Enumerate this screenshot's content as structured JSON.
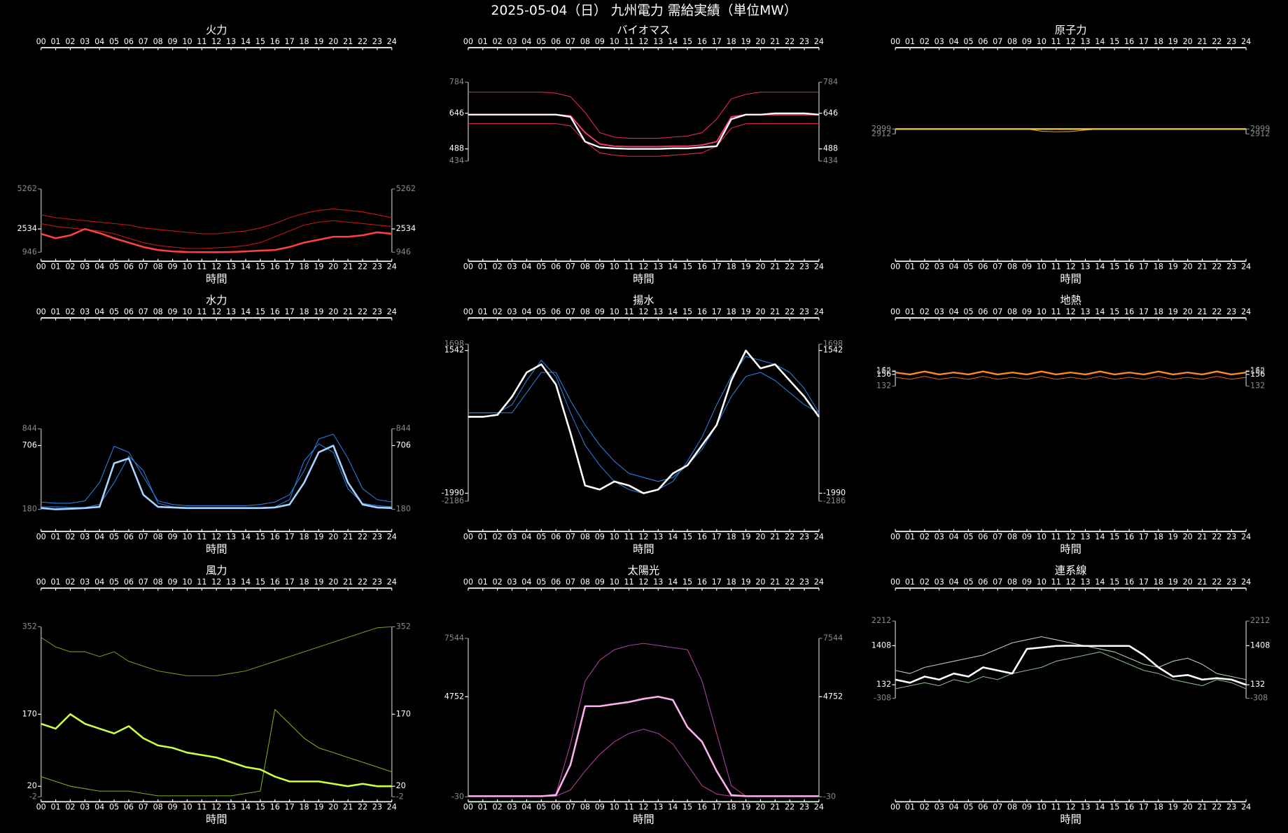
{
  "title": "2025-05-04（日） 九州電力 需給実績（単位MW）",
  "chart_data": [
    {
      "type": "line",
      "title": "火力",
      "xlabel": "時間",
      "categories": [
        "00",
        "01",
        "02",
        "03",
        "04",
        "05",
        "06",
        "07",
        "08",
        "09",
        "10",
        "11",
        "12",
        "13",
        "14",
        "15",
        "16",
        "17",
        "18",
        "19",
        "20",
        "21",
        "22",
        "23",
        "24"
      ],
      "ylim": [
        946,
        5262
      ],
      "yticks": [
        946,
        2534,
        5262
      ],
      "series": [
        {
          "color": "#c81818",
          "width": 0.9,
          "values": [
            3500,
            3300,
            3200,
            3100,
            3000,
            2900,
            2800,
            2600,
            2500,
            2400,
            2300,
            2200,
            2200,
            2300,
            2400,
            2600,
            2900,
            3300,
            3600,
            3800,
            3900,
            3800,
            3700,
            3500,
            3300
          ]
        },
        {
          "color": "#c81818",
          "width": 0.9,
          "values": [
            2900,
            2700,
            2600,
            2500,
            2400,
            2200,
            1900,
            1600,
            1400,
            1300,
            1200,
            1200,
            1250,
            1300,
            1400,
            1600,
            2000,
            2400,
            2800,
            3000,
            3100,
            3000,
            2900,
            2800,
            2700
          ]
        },
        {
          "color": "#ff4040",
          "width": 2.2,
          "values": [
            2200,
            1900,
            2100,
            2534,
            2250,
            1900,
            1600,
            1300,
            1100,
            1000,
            960,
            950,
            946,
            960,
            1000,
            1050,
            1100,
            1300,
            1600,
            1800,
            2000,
            2000,
            2100,
            2300,
            2200
          ]
        }
      ]
    },
    {
      "type": "line",
      "title": "バイオマス",
      "xlabel": "時間",
      "categories": [
        "00",
        "01",
        "02",
        "03",
        "04",
        "05",
        "06",
        "07",
        "08",
        "09",
        "10",
        "11",
        "12",
        "13",
        "14",
        "15",
        "16",
        "17",
        "18",
        "19",
        "20",
        "21",
        "22",
        "23",
        "24"
      ],
      "ylim": [
        434,
        784
      ],
      "yticks": [
        434,
        488,
        646,
        784
      ],
      "series": [
        {
          "color": "#e8285a",
          "width": 0.9,
          "values": [
            740,
            740,
            740,
            740,
            740,
            740,
            735,
            720,
            650,
            560,
            540,
            535,
            535,
            535,
            540,
            545,
            560,
            620,
            710,
            730,
            740,
            740,
            740,
            740,
            740
          ]
        },
        {
          "color": "#e8285a",
          "width": 0.9,
          "values": [
            600,
            600,
            600,
            600,
            600,
            600,
            600,
            590,
            520,
            470,
            460,
            455,
            455,
            455,
            460,
            465,
            470,
            500,
            580,
            600,
            600,
            600,
            600,
            600,
            600
          ]
        },
        {
          "color": "#ff3a6a",
          "width": 1.6,
          "values": [
            640,
            640,
            640,
            640,
            640,
            640,
            640,
            635,
            560,
            510,
            500,
            498,
            498,
            498,
            500,
            500,
            505,
            520,
            630,
            640,
            640,
            640,
            640,
            640,
            640
          ]
        },
        {
          "color": "#ffffff",
          "width": 2.0,
          "values": [
            640,
            640,
            640,
            640,
            640,
            640,
            640,
            630,
            520,
            495,
            490,
            488,
            488,
            488,
            490,
            490,
            495,
            500,
            620,
            640,
            640,
            646,
            646,
            646,
            640
          ]
        }
      ]
    },
    {
      "type": "line",
      "title": "原子力",
      "xlabel": "時間",
      "categories": [
        "00",
        "01",
        "02",
        "03",
        "04",
        "05",
        "06",
        "07",
        "08",
        "09",
        "10",
        "11",
        "12",
        "13",
        "14",
        "15",
        "16",
        "17",
        "18",
        "19",
        "20",
        "21",
        "22",
        "23",
        "24"
      ],
      "ylim": [
        2912,
        2999
      ],
      "yticks": [
        2912,
        2999
      ],
      "series": [
        {
          "color": "#c8a030",
          "width": 0.9,
          "values": [
            2999,
            2999,
            2999,
            2999,
            2999,
            2999,
            2999,
            2999,
            2999,
            2999,
            2960,
            2950,
            2955,
            2980,
            2999,
            2999,
            2999,
            2999,
            2999,
            2999,
            2999,
            2999,
            2999,
            2999,
            2999
          ]
        },
        {
          "color": "#f0c040",
          "width": 2.0,
          "values": [
            2999,
            2999,
            2999,
            2999,
            2999,
            2999,
            2999,
            2999,
            2999,
            2999,
            2999,
            2999,
            2999,
            2999,
            2999,
            2999,
            2999,
            2999,
            2999,
            2999,
            2999,
            2999,
            2999,
            2999,
            2999
          ]
        }
      ]
    },
    {
      "type": "line",
      "title": "水力",
      "xlabel": "時間",
      "categories": [
        "00",
        "01",
        "02",
        "03",
        "04",
        "05",
        "06",
        "07",
        "08",
        "09",
        "10",
        "11",
        "12",
        "13",
        "14",
        "15",
        "16",
        "17",
        "18",
        "19",
        "20",
        "21",
        "22",
        "23",
        "24"
      ],
      "ylim": [
        180,
        844
      ],
      "yticks": [
        180,
        706,
        844
      ],
      "series": [
        {
          "color": "#2a80e0",
          "width": 0.9,
          "values": [
            240,
            230,
            230,
            250,
            400,
            700,
            650,
            450,
            250,
            220,
            210,
            210,
            210,
            210,
            210,
            220,
            240,
            300,
            500,
            760,
            800,
            600,
            350,
            260,
            240
          ]
        },
        {
          "color": "#2a80e0",
          "width": 0.9,
          "values": [
            200,
            200,
            195,
            195,
            220,
            400,
            620,
            500,
            230,
            200,
            195,
            195,
            195,
            195,
            195,
            195,
            200,
            260,
            580,
            720,
            650,
            350,
            230,
            210,
            200
          ]
        },
        {
          "color": "#a8d4ff",
          "width": 2.2,
          "values": [
            190,
            180,
            185,
            190,
            200,
            560,
            600,
            300,
            200,
            195,
            190,
            190,
            190,
            190,
            190,
            190,
            195,
            220,
            400,
            650,
            706,
            400,
            220,
            195,
            190
          ]
        }
      ]
    },
    {
      "type": "line",
      "title": "揚水",
      "xlabel": "時間",
      "categories": [
        "00",
        "01",
        "02",
        "03",
        "04",
        "05",
        "06",
        "07",
        "08",
        "09",
        "10",
        "11",
        "12",
        "13",
        "14",
        "15",
        "16",
        "17",
        "18",
        "19",
        "20",
        "21",
        "22",
        "23",
        "24"
      ],
      "ylim": [
        -2186,
        1698
      ],
      "yticks": [
        -2186,
        -1990,
        1542,
        1698
      ],
      "series": [
        {
          "color": "#2a80e0",
          "width": 0.9,
          "values": [
            0,
            0,
            0,
            200,
            800,
            1300,
            900,
            0,
            -800,
            -1300,
            -1700,
            -1900,
            -2000,
            -1900,
            -1700,
            -1200,
            -600,
            200,
            900,
            1400,
            1300,
            1200,
            1000,
            600,
            0
          ]
        },
        {
          "color": "#2a80e0",
          "width": 0.9,
          "values": [
            0,
            0,
            0,
            0,
            500,
            1000,
            1000,
            300,
            -300,
            -800,
            -1200,
            -1500,
            -1600,
            -1700,
            -1600,
            -1300,
            -900,
            -300,
            400,
            900,
            1000,
            800,
            500,
            200,
            0
          ]
        },
        {
          "color": "#ffffff",
          "width": 2.2,
          "values": [
            -100,
            -100,
            -50,
            400,
            1000,
            1200,
            700,
            -500,
            -1800,
            -1900,
            -1700,
            -1800,
            -1990,
            -1900,
            -1500,
            -1300,
            -800,
            -300,
            800,
            1542,
            1100,
            1200,
            800,
            400,
            -100
          ]
        }
      ]
    },
    {
      "type": "line",
      "title": "地熱",
      "xlabel": "時間",
      "categories": [
        "00",
        "01",
        "02",
        "03",
        "04",
        "05",
        "06",
        "07",
        "08",
        "09",
        "10",
        "11",
        "12",
        "13",
        "14",
        "15",
        "16",
        "17",
        "18",
        "19",
        "20",
        "21",
        "22",
        "23",
        "24"
      ],
      "ylim": [
        132,
        164
      ],
      "yticks": [
        132,
        156,
        162,
        164
      ],
      "series": [
        {
          "color": "#d06a10",
          "width": 0.9,
          "values": [
            150,
            146,
            152,
            146,
            150,
            146,
            152,
            146,
            150,
            146,
            152,
            146,
            150,
            146,
            152,
            146,
            150,
            146,
            152,
            146,
            150,
            146,
            152,
            146,
            150
          ]
        },
        {
          "color": "#ff8820",
          "width": 2.0,
          "values": [
            160,
            156,
            162,
            156,
            160,
            156,
            162,
            156,
            160,
            156,
            162,
            156,
            160,
            156,
            162,
            156,
            160,
            156,
            162,
            156,
            160,
            156,
            162,
            156,
            160
          ]
        }
      ]
    },
    {
      "type": "line",
      "title": "風力",
      "xlabel": "時間",
      "categories": [
        "00",
        "01",
        "02",
        "03",
        "04",
        "05",
        "06",
        "07",
        "08",
        "09",
        "10",
        "11",
        "12",
        "13",
        "14",
        "15",
        "16",
        "17",
        "18",
        "19",
        "20",
        "21",
        "22",
        "23",
        "24"
      ],
      "ylim": [
        -2,
        352
      ],
      "yticks": [
        -2,
        20,
        170,
        352
      ],
      "series": [
        {
          "color": "#6a9a18",
          "width": 0.9,
          "values": [
            330,
            310,
            300,
            300,
            290,
            300,
            280,
            270,
            260,
            255,
            250,
            250,
            250,
            255,
            260,
            270,
            280,
            290,
            300,
            310,
            320,
            330,
            340,
            350,
            352
          ]
        },
        {
          "color": "#7ab020",
          "width": 0.9,
          "values": [
            40,
            30,
            20,
            15,
            10,
            10,
            10,
            5,
            0,
            0,
            0,
            0,
            0,
            0,
            5,
            10,
            180,
            150,
            120,
            100,
            90,
            80,
            70,
            60,
            50
          ]
        },
        {
          "color": "#ccff44",
          "width": 2.2,
          "values": [
            150,
            140,
            170,
            150,
            140,
            130,
            145,
            120,
            105,
            100,
            90,
            85,
            80,
            70,
            60,
            55,
            40,
            30,
            30,
            30,
            25,
            20,
            25,
            20,
            20
          ]
        }
      ]
    },
    {
      "type": "line",
      "title": "太陽光",
      "xlabel": "時間",
      "categories": [
        "00",
        "01",
        "02",
        "03",
        "04",
        "05",
        "06",
        "07",
        "08",
        "09",
        "10",
        "11",
        "12",
        "13",
        "14",
        "15",
        "16",
        "17",
        "18",
        "19",
        "20",
        "21",
        "22",
        "23",
        "24"
      ],
      "ylim": [
        -30,
        7544
      ],
      "yticks": [
        -30,
        4752,
        7544
      ],
      "series": [
        {
          "color": "#b040a0",
          "width": 0.9,
          "values": [
            0,
            0,
            0,
            0,
            0,
            0,
            100,
            2500,
            5500,
            6500,
            7000,
            7200,
            7300,
            7200,
            7100,
            7000,
            5500,
            3000,
            500,
            0,
            0,
            0,
            0,
            0,
            0
          ]
        },
        {
          "color": "#b040a0",
          "width": 0.9,
          "values": [
            0,
            0,
            0,
            0,
            0,
            0,
            0,
            300,
            1200,
            2000,
            2600,
            3000,
            3200,
            3000,
            2500,
            1500,
            500,
            100,
            0,
            0,
            0,
            0,
            0,
            0,
            0
          ]
        },
        {
          "color": "#ffb0f0",
          "width": 2.2,
          "values": [
            0,
            0,
            0,
            0,
            0,
            0,
            50,
            1500,
            4300,
            4300,
            4400,
            4500,
            4650,
            4752,
            4600,
            3300,
            2600,
            1200,
            50,
            0,
            0,
            0,
            0,
            0,
            0
          ]
        }
      ]
    },
    {
      "type": "line",
      "title": "連系線",
      "xlabel": "時間",
      "categories": [
        "00",
        "01",
        "02",
        "03",
        "04",
        "05",
        "06",
        "07",
        "08",
        "09",
        "10",
        "11",
        "12",
        "13",
        "14",
        "15",
        "16",
        "17",
        "18",
        "19",
        "20",
        "21",
        "22",
        "23",
        "24"
      ],
      "ylim": [
        -308,
        2212
      ],
      "yticks": [
        -308,
        132,
        1408,
        2212
      ],
      "series": [
        {
          "color": "#8ab88a",
          "width": 0.9,
          "values": [
            0,
            100,
            200,
            100,
            300,
            200,
            400,
            300,
            500,
            600,
            700,
            900,
            1000,
            1100,
            1200,
            1000,
            800,
            600,
            500,
            300,
            200,
            100,
            300,
            200,
            0
          ]
        },
        {
          "color": "#b0d8b0",
          "width": 0.9,
          "values": [
            600,
            500,
            700,
            800,
            900,
            1000,
            1100,
            1300,
            1500,
            1600,
            1700,
            1600,
            1500,
            1400,
            1300,
            1200,
            1000,
            800,
            700,
            900,
            1000,
            800,
            500,
            400,
            300
          ]
        },
        {
          "color": "#ffffff",
          "width": 2.2,
          "values": [
            300,
            200,
            400,
            300,
            500,
            400,
            700,
            600,
            500,
            1300,
            1350,
            1400,
            1408,
            1400,
            1400,
            1400,
            1400,
            1100,
            700,
            400,
            450,
            300,
            350,
            300,
            132
          ]
        }
      ]
    }
  ]
}
